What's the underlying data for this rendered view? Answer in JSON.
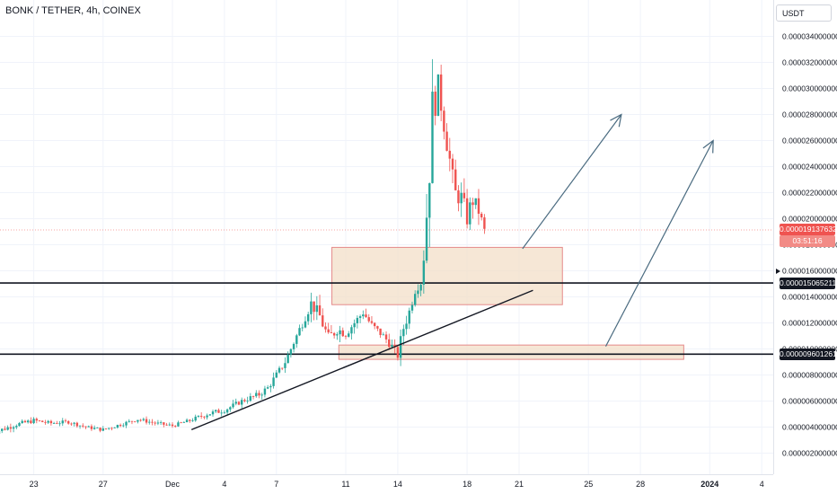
{
  "header": {
    "symbol": "BONK / TETHER, 4h, COINEX",
    "currency": "USDT"
  },
  "price_tags": {
    "current_price": "0.000019137632",
    "countdown": "03:51:16",
    "level_upper": "0.000015065211",
    "level_lower": "0.000009601261"
  },
  "colors": {
    "candle_up": "#26a69a",
    "candle_down": "#ef5350",
    "zone_fill": "#f3dfc8",
    "zone_border": "#e58a8a",
    "level_line": "#131722",
    "arrow": "#4a6b80",
    "current_price_tag": "#ef5350"
  },
  "chart_data": {
    "type": "candlestick",
    "symbol": "BONK / TETHER, 4h, COINEX",
    "ylim": [
      0.0,
      3.6e-05
    ],
    "y_ticks": [
      "0.000002000000",
      "0.000004000000",
      "0.000006000000",
      "0.000008000000",
      "0.000010000000",
      "0.000012000000",
      "0.000014000000",
      "0.000016000000",
      "0.000018000000",
      "0.000020000000",
      "0.000022000000",
      "0.000024000000",
      "0.000026000000",
      "0.000028000000",
      "0.000030000000",
      "0.000032000000",
      "0.000034000000"
    ],
    "y_tick_values": [
      2,
      4,
      6,
      8,
      10,
      12,
      14,
      16,
      18,
      20,
      22,
      24,
      26,
      28,
      30,
      32,
      34
    ],
    "y_unit_note": "values in units of 0.000001 USDT",
    "x_ticks": [
      "23",
      "27",
      "Dec",
      "4",
      "7",
      "11",
      "14",
      "18",
      "21",
      "25",
      "28",
      "2024",
      "4"
    ],
    "x_tick_days": [
      -8,
      -4,
      0,
      3,
      6,
      10,
      13,
      17,
      20,
      24,
      27,
      31,
      34
    ],
    "x_range_days": [
      -10.5,
      35
    ],
    "price_series": {
      "x_days": [
        -10.5,
        -9,
        -8,
        -7,
        -6,
        -5,
        -4,
        -3,
        -2,
        -1,
        0,
        1,
        2,
        3,
        4,
        5,
        5.5,
        6,
        6.5,
        7,
        7.5,
        8,
        8.5,
        9,
        9.5,
        10,
        10.5,
        11,
        11.5,
        12,
        12.5,
        13,
        13.3,
        13.7,
        14,
        14.4,
        14.7,
        15,
        15.3,
        15.7,
        16,
        16.3,
        16.7,
        17,
        17.3,
        17.7,
        18
      ],
      "close": [
        3.5,
        4.2,
        4.5,
        4.3,
        4.4,
        4.0,
        3.8,
        4.2,
        4.6,
        4.3,
        4.1,
        4.5,
        5.0,
        5.3,
        6.0,
        6.5,
        7.0,
        8.0,
        9.0,
        10.5,
        12.0,
        13.5,
        12.5,
        10.8,
        11.5,
        11.2,
        12.0,
        12.8,
        11.8,
        11.2,
        10.5,
        9.5,
        11.5,
        13.0,
        14.5,
        15.2,
        21.0,
        28.0,
        30.5,
        27.0,
        24.5,
        22.0,
        21.5,
        20.0,
        21.5,
        20.5,
        19.1
      ],
      "high": [
        4.5,
        4.8,
        5.0,
        4.7,
        4.8,
        4.4,
        4.3,
        4.6,
        5.0,
        4.8,
        4.6,
        4.9,
        5.8,
        6.1,
        6.6,
        7.3,
        8.0,
        9.0,
        10.0,
        11.5,
        13.0,
        14.5,
        14.2,
        13.0,
        12.8,
        12.5,
        13.0,
        13.3,
        13.0,
        12.2,
        11.8,
        11.3,
        13.2,
        14.2,
        15.4,
        16.1,
        24.0,
        33.6,
        31.5,
        30.0,
        27.0,
        24.2,
        25.0,
        23.0,
        24.0,
        22.2,
        20.1
      ],
      "low": [
        3.3,
        3.8,
        4.0,
        3.9,
        4.0,
        3.7,
        3.5,
        3.8,
        4.2,
        4.0,
        3.9,
        4.1,
        4.6,
        5.0,
        5.5,
        6.0,
        6.5,
        7.5,
        8.4,
        9.8,
        11.0,
        12.0,
        11.0,
        10.0,
        10.4,
        10.4,
        11.0,
        11.5,
        11.0,
        10.5,
        9.8,
        9.4,
        10.0,
        12.0,
        13.5,
        14.5,
        15.5,
        20.0,
        26.5,
        25.5,
        22.0,
        20.5,
        20.0,
        19.2,
        19.8,
        19.2,
        18.4
      ]
    },
    "annotations": {
      "horizontal_levels": [
        15.065211,
        9.601261
      ],
      "current_price": 19.137632,
      "zones": [
        {
          "x_start_days": 9.2,
          "x_end_days": 22.5,
          "y_low": 13.4,
          "y_high": 17.8
        },
        {
          "x_start_days": 9.6,
          "x_end_days": 29.5,
          "y_low": 9.2,
          "y_high": 10.3
        }
      ],
      "trend_line": {
        "x_start_days": 1.1,
        "y_start": 3.8,
        "x_end_days": 20.8,
        "y_end": 14.5
      },
      "arrows": [
        {
          "x_start_days": 20.2,
          "y_start": 17.7,
          "x_end_days": 25.9,
          "y_end": 28.0
        },
        {
          "x_start_days": 25.0,
          "y_start": 10.2,
          "x_end_days": 31.2,
          "y_end": 26.0
        }
      ]
    }
  }
}
